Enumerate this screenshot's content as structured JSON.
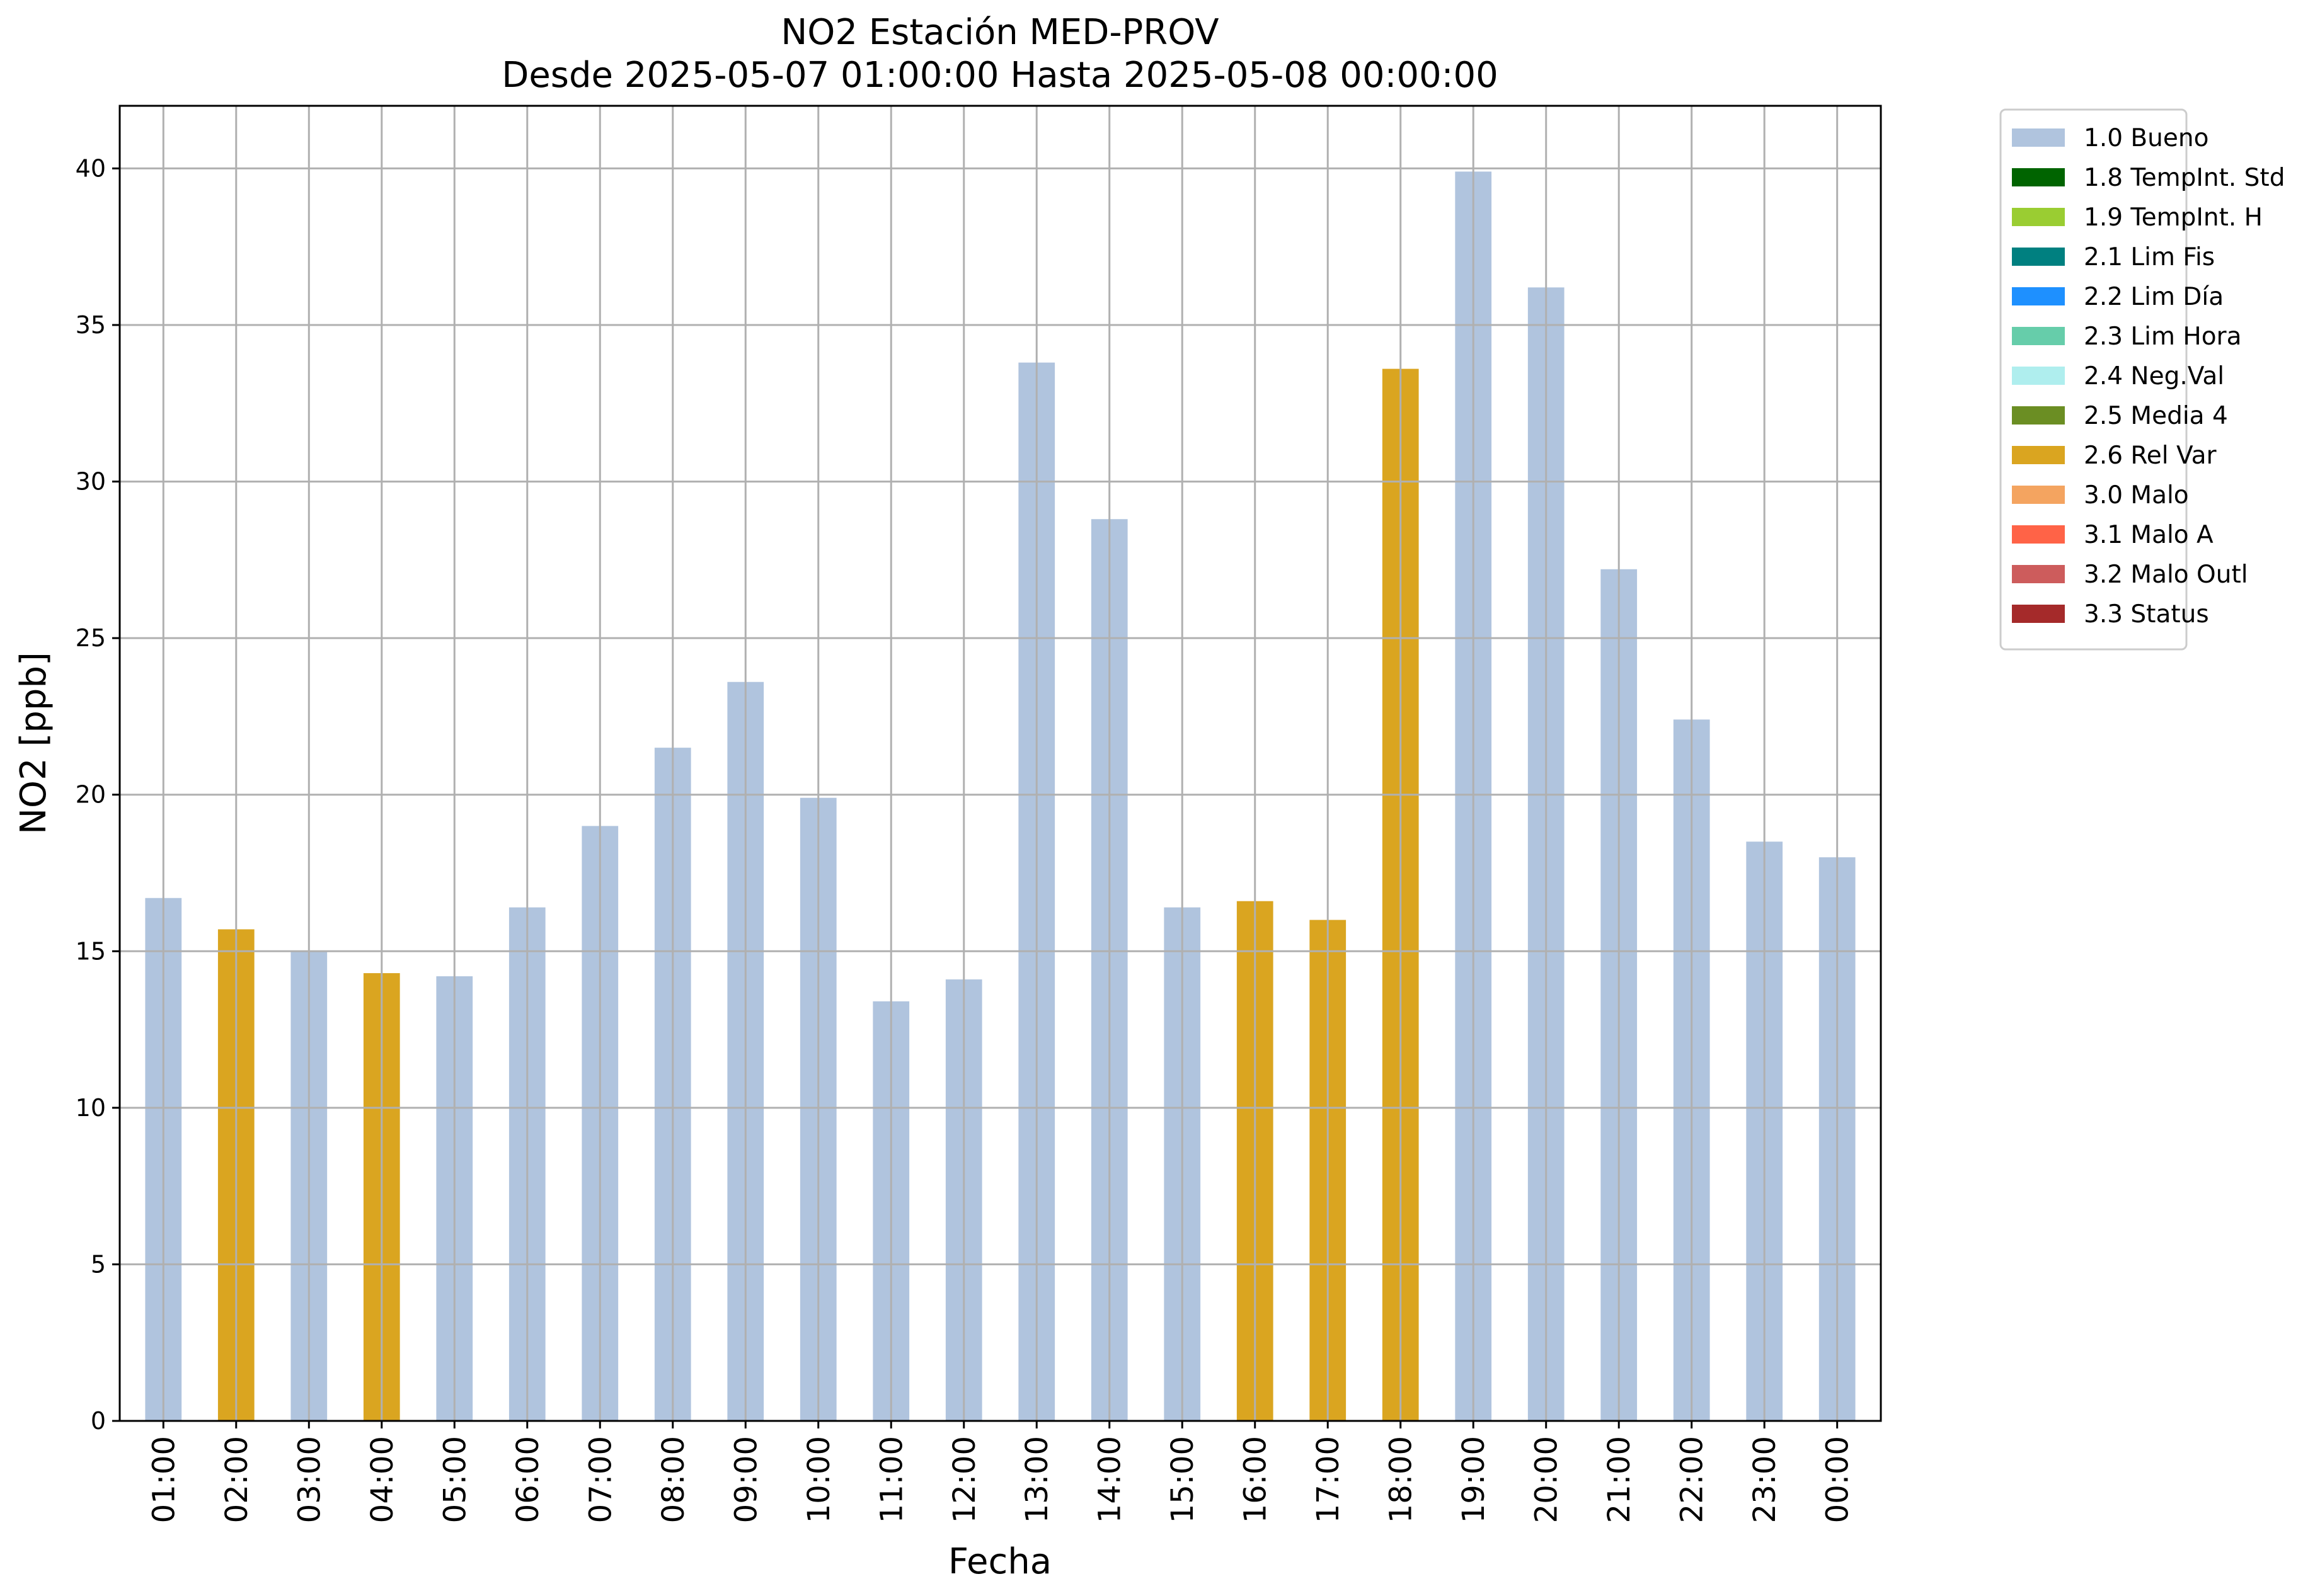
{
  "chart_data": {
    "type": "bar",
    "title": "NO2 Estación MED-PROV",
    "subtitle": "Desde 2025-05-07 01:00:00 Hasta 2025-05-08 00:00:00",
    "xlabel": "Fecha",
    "ylabel": "NO2 [ppb]",
    "ylim": [
      0,
      42
    ],
    "yticks": [
      0,
      5,
      10,
      15,
      20,
      25,
      30,
      35,
      40
    ],
    "grid": true,
    "legend_position": "outside-top-right",
    "categories": [
      "01:00",
      "02:00",
      "03:00",
      "04:00",
      "05:00",
      "06:00",
      "07:00",
      "08:00",
      "09:00",
      "10:00",
      "11:00",
      "12:00",
      "13:00",
      "14:00",
      "15:00",
      "16:00",
      "17:00",
      "18:00",
      "19:00",
      "20:00",
      "21:00",
      "22:00",
      "23:00",
      "00:00"
    ],
    "values": [
      16.7,
      15.7,
      15.0,
      14.3,
      14.2,
      16.4,
      19.0,
      21.5,
      23.6,
      19.9,
      13.4,
      14.1,
      33.8,
      28.8,
      16.4,
      16.6,
      16.0,
      33.6,
      39.9,
      36.2,
      27.2,
      22.4,
      18.5,
      18.0
    ],
    "flags": [
      "1.0 Bueno",
      "2.6 Rel Var",
      "1.0 Bueno",
      "2.6 Rel Var",
      "1.0 Bueno",
      "1.0 Bueno",
      "1.0 Bueno",
      "1.0 Bueno",
      "1.0 Bueno",
      "1.0 Bueno",
      "1.0 Bueno",
      "1.0 Bueno",
      "1.0 Bueno",
      "1.0 Bueno",
      "1.0 Bueno",
      "2.6 Rel Var",
      "2.6 Rel Var",
      "2.6 Rel Var",
      "1.0 Bueno",
      "1.0 Bueno",
      "1.0 Bueno",
      "1.0 Bueno",
      "1.0 Bueno",
      "1.0 Bueno"
    ],
    "legend": [
      {
        "label": "1.0 Bueno",
        "color": "#b0c4de"
      },
      {
        "label": "1.8 TempInt. Std",
        "color": "#006400"
      },
      {
        "label": "1.9 TempInt. H",
        "color": "#9acd32"
      },
      {
        "label": "2.1 Lim Fis",
        "color": "#008080"
      },
      {
        "label": "2.2 Lim Día",
        "color": "#1e90ff"
      },
      {
        "label": "2.3 Lim Hora",
        "color": "#66cdaa"
      },
      {
        "label": "2.4 Neg.Val",
        "color": "#afeeee"
      },
      {
        "label": "2.5 Media 4",
        "color": "#6b8e23"
      },
      {
        "label": "2.6 Rel Var",
        "color": "#daa520"
      },
      {
        "label": "3.0 Malo",
        "color": "#f4a460"
      },
      {
        "label": "3.1 Malo A",
        "color": "#ff6347"
      },
      {
        "label": "3.2 Malo Outl",
        "color": "#cd5c5c"
      },
      {
        "label": "3.3 Status",
        "color": "#a52a2a"
      }
    ]
  }
}
